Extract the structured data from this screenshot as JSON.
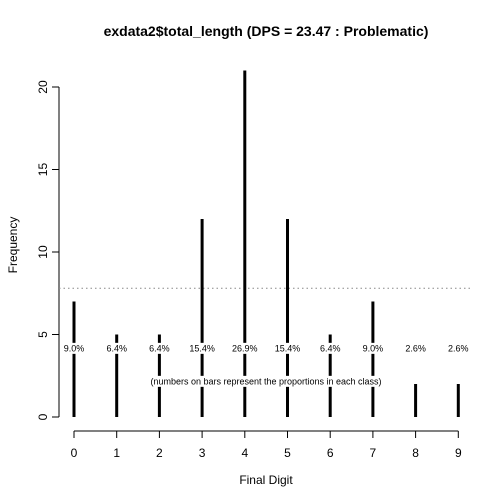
{
  "chart_data": {
    "type": "bar",
    "title": "exdata2$total_length (DPS = 23.47 : Problematic)",
    "xlabel": "Final Digit",
    "ylabel": "Frequency",
    "categories": [
      "0",
      "1",
      "2",
      "3",
      "4",
      "5",
      "6",
      "7",
      "8",
      "9"
    ],
    "values": [
      7,
      5,
      5,
      12,
      21,
      12,
      5,
      7,
      2,
      2
    ],
    "proportion_labels": [
      "9.0%",
      "6.4%",
      "6.4%",
      "15.4%",
      "26.9%",
      "15.4%",
      "6.4%",
      "9.0%",
      "2.6%",
      "2.6%"
    ],
    "ylim": [
      0,
      21
    ],
    "yticks": [
      0,
      5,
      10,
      15,
      20
    ],
    "expected_line": 7.8,
    "note": "(numbers on bars represent the proportions in each class)",
    "grid": false,
    "legend": "none",
    "bar_color": "#000000",
    "expected_line_color": "#888888"
  }
}
